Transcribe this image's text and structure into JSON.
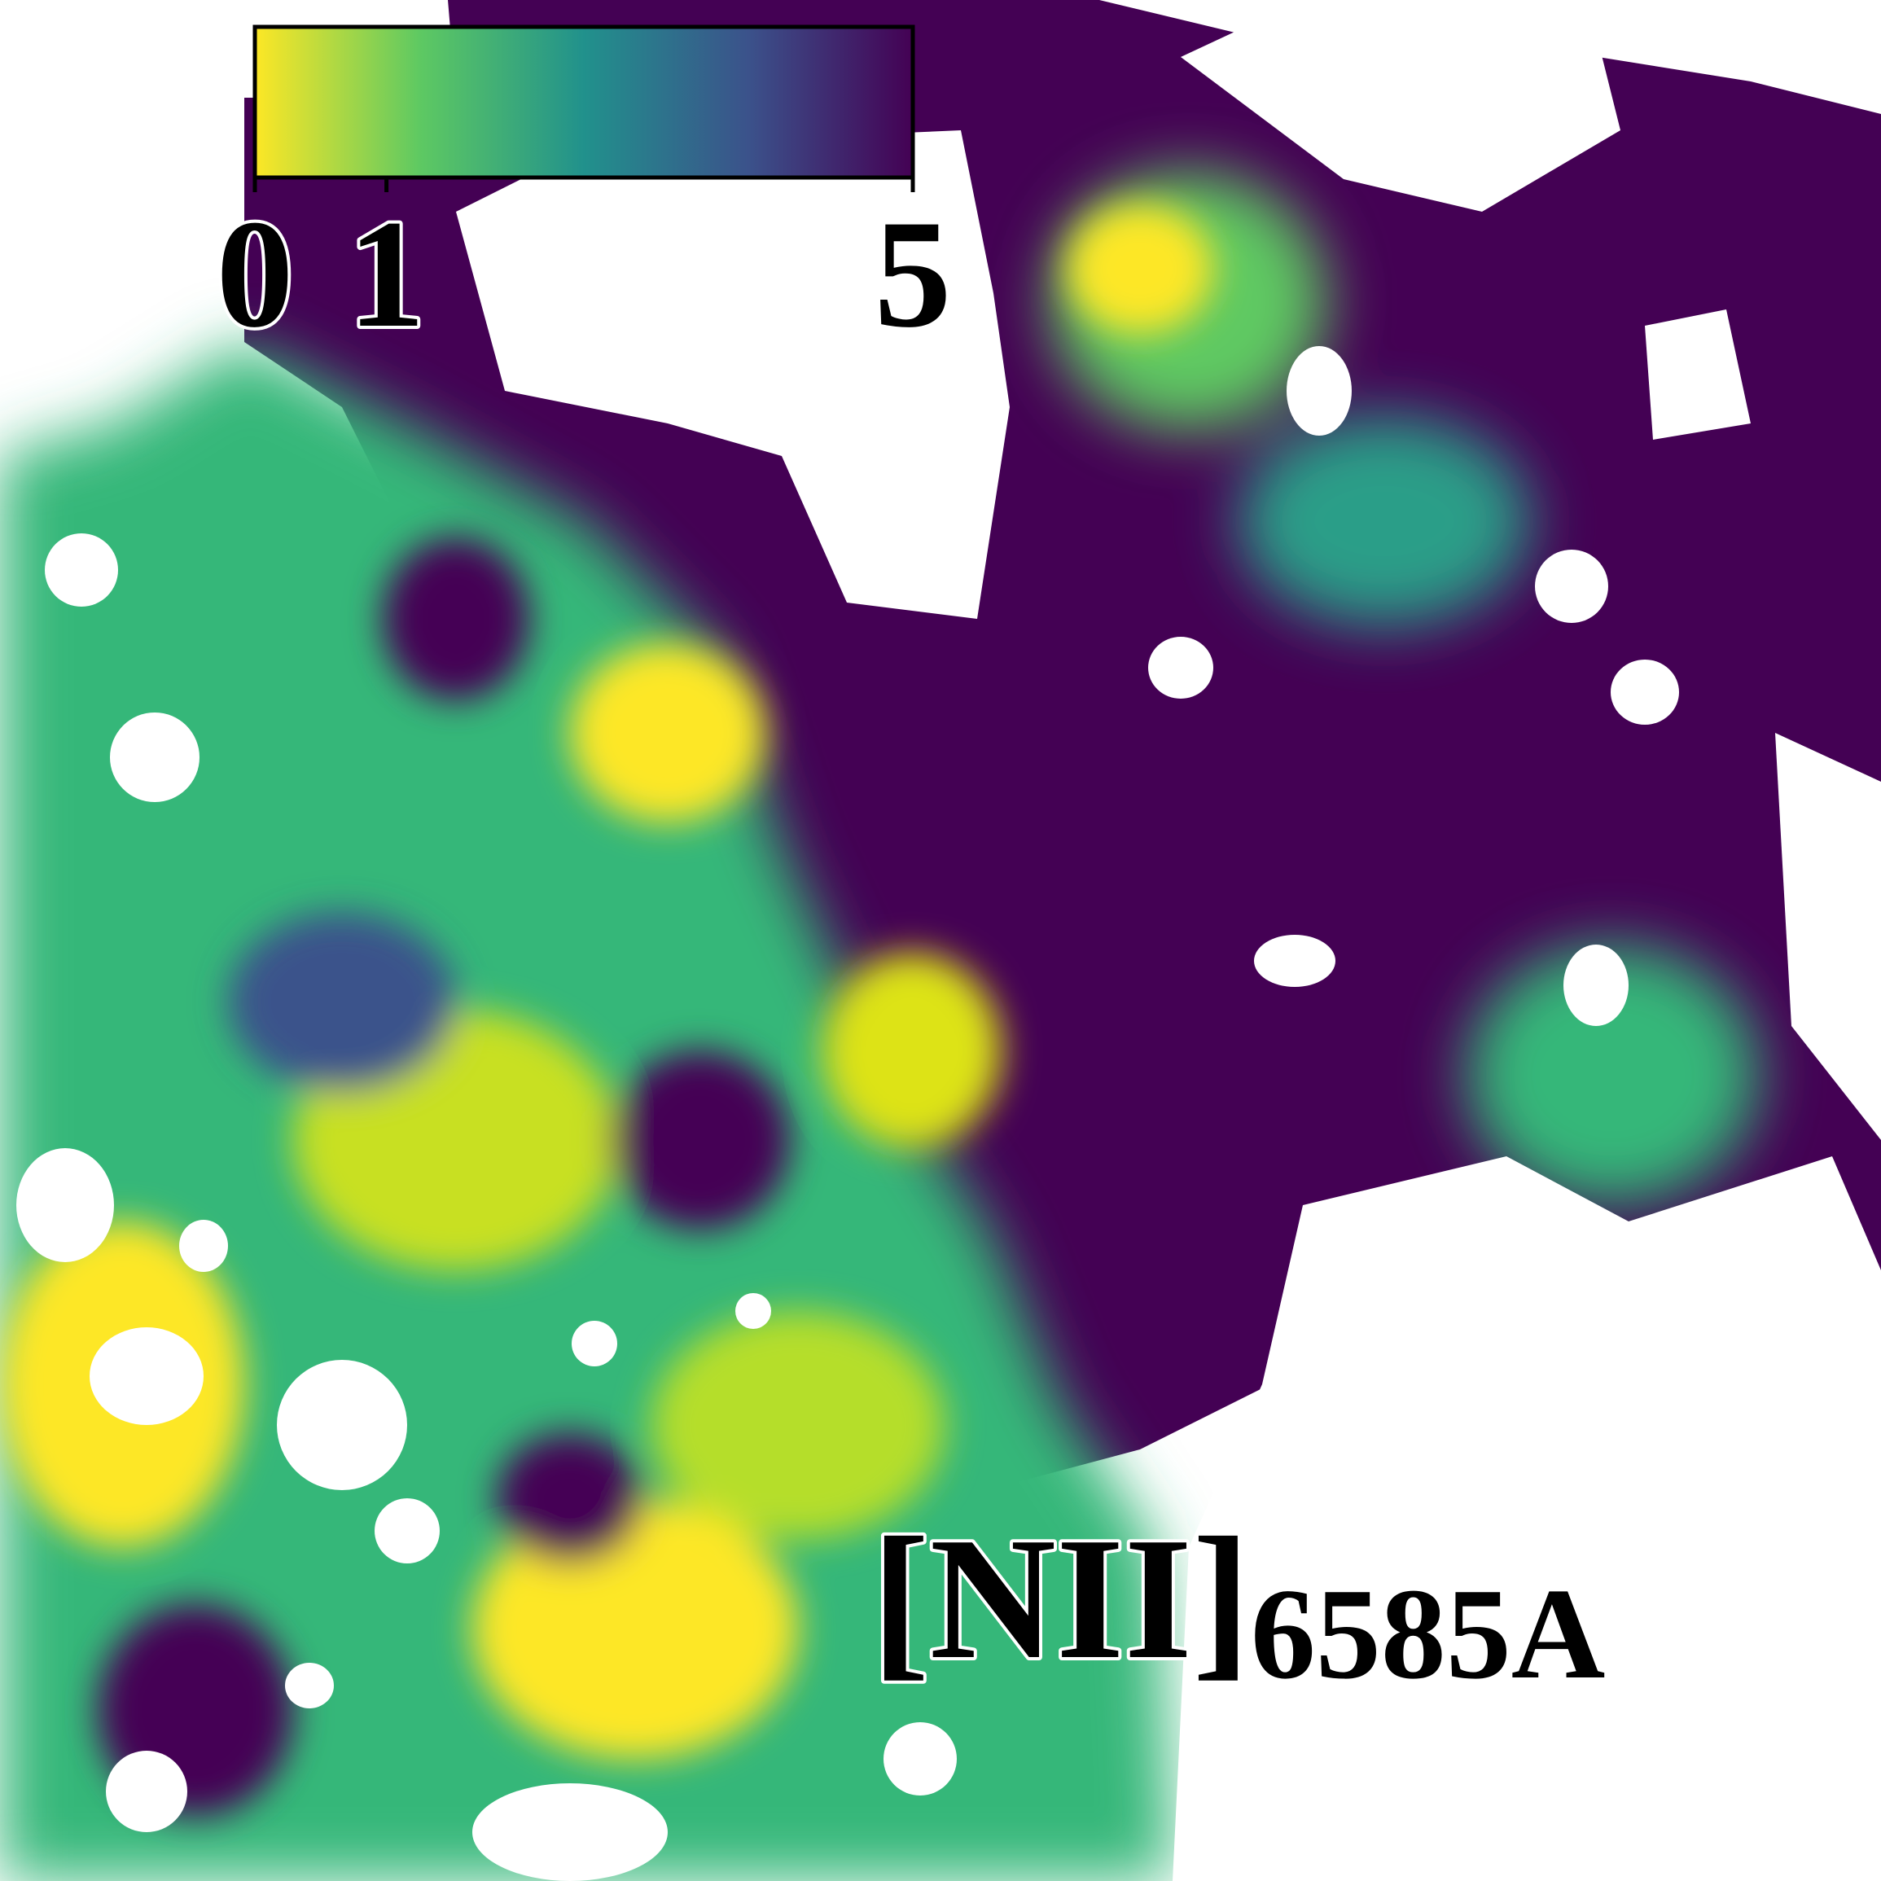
{
  "chart_data": {
    "type": "heatmap",
    "title": "",
    "line_label": "[NII]",
    "line_subscript": "6585A",
    "colormap": "viridis_r",
    "colorbar": {
      "vmin": 0,
      "vmax": 5,
      "tick_values": [
        0,
        1,
        5
      ],
      "tick_labels": [
        "0",
        "1",
        "5"
      ],
      "colors": [
        "#fde725",
        "#5ec962",
        "#21918c",
        "#3b528b",
        "#440154"
      ]
    },
    "saturated_color": "#440154",
    "masked_color": "#ffffff"
  }
}
